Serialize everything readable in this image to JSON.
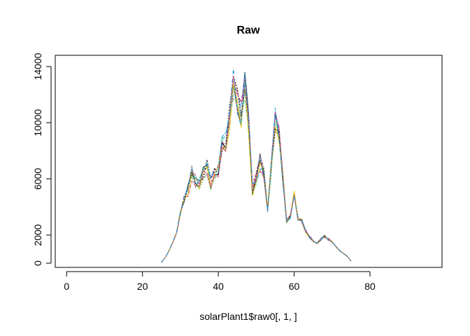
{
  "chart_data": {
    "type": "line",
    "title": "Raw",
    "xlabel": "solarPlant1$raw0[, 1, ]",
    "ylabel": "",
    "xlim": [
      -3,
      99
    ],
    "ylim": [
      -300,
      14800
    ],
    "x_ticks": [
      0,
      20,
      40,
      60,
      80
    ],
    "x_tick_labels": [
      "0",
      "20",
      "40",
      "60",
      "80"
    ],
    "y_ticks": [
      0,
      2000,
      6000,
      10000,
      14000
    ],
    "y_tick_labels": [
      "0",
      "2000",
      "6000",
      "10000",
      "14000"
    ],
    "grid": false,
    "legend": "none",
    "x": [
      25,
      26,
      27,
      28,
      29,
      30,
      31,
      32,
      33,
      34,
      35,
      36,
      37,
      38,
      39,
      40,
      41,
      42,
      43,
      44,
      45,
      46,
      47,
      48,
      49,
      50,
      51,
      52,
      53,
      54,
      55,
      56,
      57,
      58,
      59,
      60,
      61,
      62,
      63,
      64,
      65,
      66,
      67,
      68,
      69,
      70,
      71,
      72,
      73,
      74,
      75
    ],
    "base_series": [
      50,
      400,
      900,
      1500,
      2200,
      3600,
      4600,
      5200,
      6400,
      5800,
      5600,
      6500,
      6800,
      5700,
      6300,
      6600,
      8300,
      8700,
      10500,
      12800,
      11700,
      10600,
      12600,
      9800,
      5200,
      6000,
      7200,
      6500,
      3800,
      6900,
      10300,
      9500,
      6200,
      3000,
      3300,
      5000,
      3200,
      3000,
      2300,
      1900,
      1600,
      1400,
      1700,
      1900,
      1700,
      1500,
      1200,
      900,
      700,
      500,
      150
    ],
    "series_count": 12,
    "colors": [
      "#000000",
      "#DF536B",
      "#61D04F",
      "#2297E6",
      "#28E2E5",
      "#CD0BBC",
      "#F5C710",
      "#9E9E9E",
      "#000000",
      "#DF536B",
      "#61D04F",
      "#2297E6"
    ]
  }
}
